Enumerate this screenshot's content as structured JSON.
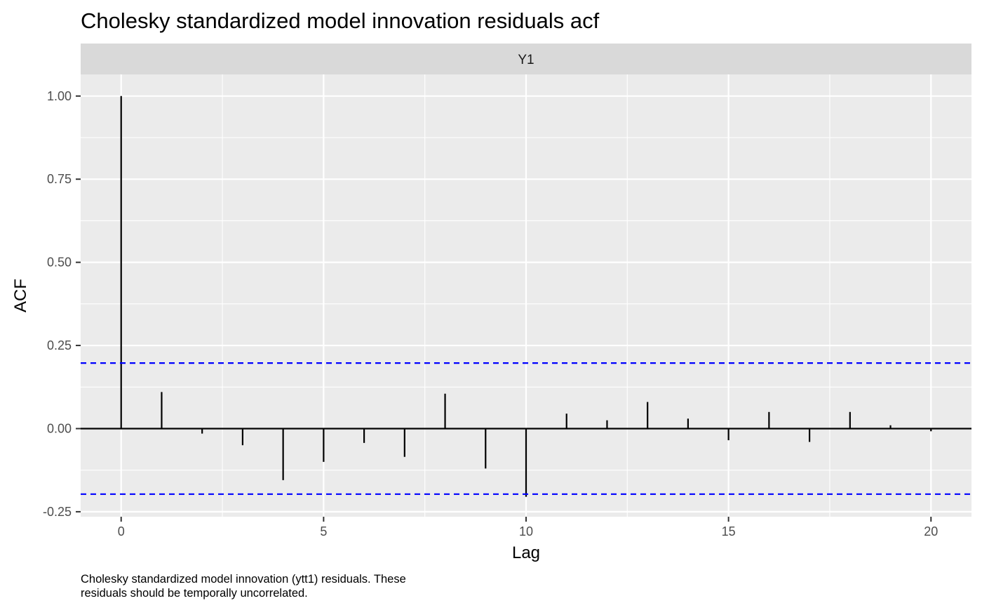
{
  "chart_data": {
    "type": "bar",
    "title": "Cholesky standardized model innovation residuals acf",
    "facet_label": "Y1",
    "xlabel": "Lag",
    "ylabel": "ACF",
    "caption_lines": [
      "Cholesky standardized model innovation (ytt1) residuals. These",
      "residuals should be temporally uncorrelated."
    ],
    "x": [
      0,
      1,
      2,
      3,
      4,
      5,
      6,
      7,
      8,
      9,
      10,
      11,
      12,
      13,
      14,
      15,
      16,
      17,
      18,
      19,
      20
    ],
    "values": [
      1.0,
      0.11,
      -0.015,
      -0.05,
      -0.155,
      -0.1,
      -0.043,
      -0.085,
      0.105,
      -0.12,
      -0.205,
      0.045,
      0.025,
      0.08,
      0.03,
      -0.035,
      0.05,
      -0.04,
      0.05,
      0.01,
      -0.008
    ],
    "confidence_bound": 0.197,
    "xlim": [
      -1,
      21
    ],
    "ylim": [
      -0.265,
      1.065
    ],
    "x_ticks": [
      0,
      5,
      10,
      15,
      20
    ],
    "x_tick_labels": [
      "0",
      "5",
      "10",
      "15",
      "20"
    ],
    "y_ticks": [
      -0.25,
      0,
      0.25,
      0.5,
      0.75,
      1.0
    ],
    "y_tick_labels": [
      "-0.25",
      "0.00",
      "0.25",
      "0.50",
      "0.75",
      "1.00"
    ],
    "grid": true,
    "legend": "none",
    "colors": {
      "panel_background": "#ebebeb",
      "strip_background": "#d9d9d9",
      "grid": "#ffffff",
      "bars": "#000000",
      "confidence_line": "#0000ff"
    }
  }
}
